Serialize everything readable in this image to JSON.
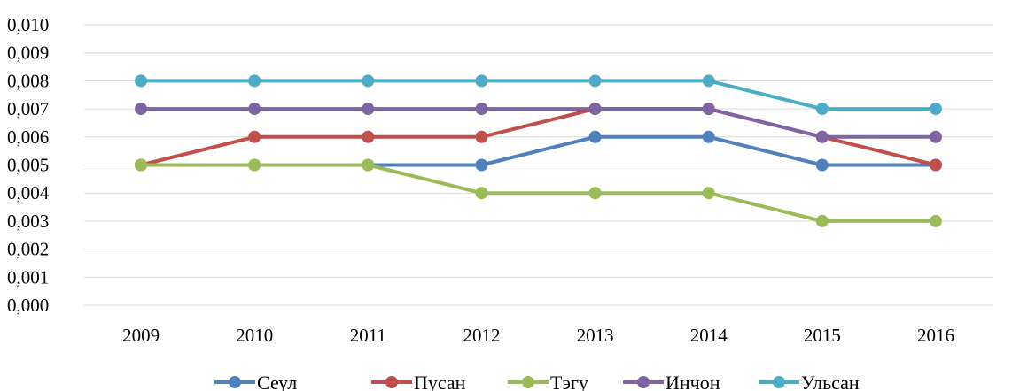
{
  "chart_data": {
    "type": "line",
    "categories": [
      "2009",
      "2010",
      "2011",
      "2012",
      "2013",
      "2014",
      "2015",
      "2016"
    ],
    "ylim": [
      0,
      0.01
    ],
    "y_ticks": [
      "0,000",
      "0,001",
      "0,002",
      "0,003",
      "0,004",
      "0,005",
      "0,006",
      "0,007",
      "0,008",
      "0,009",
      "0,010"
    ],
    "grid": true,
    "legend_position": "bottom",
    "title": "",
    "xlabel": "",
    "ylabel": "",
    "series": [
      {
        "name": "Сеул",
        "color": "#4F81BD",
        "values": [
          0.005,
          0.005,
          0.005,
          0.005,
          0.006,
          0.006,
          0.005,
          0.005
        ]
      },
      {
        "name": "Пусан",
        "color": "#C0504D",
        "values": [
          0.005,
          0.006,
          0.006,
          0.006,
          0.007,
          0.007,
          0.006,
          0.005
        ]
      },
      {
        "name": "Тэгу",
        "color": "#9BBB59",
        "values": [
          0.005,
          0.005,
          0.005,
          0.004,
          0.004,
          0.004,
          0.003,
          0.003
        ]
      },
      {
        "name": "Инчон",
        "color": "#8064A2",
        "values": [
          0.007,
          0.007,
          0.007,
          0.007,
          0.007,
          0.007,
          0.006,
          0.006
        ]
      },
      {
        "name": "Ульсан",
        "color": "#4BACC6",
        "values": [
          0.008,
          0.008,
          0.008,
          0.008,
          0.008,
          0.008,
          0.007,
          0.007
        ]
      }
    ]
  }
}
